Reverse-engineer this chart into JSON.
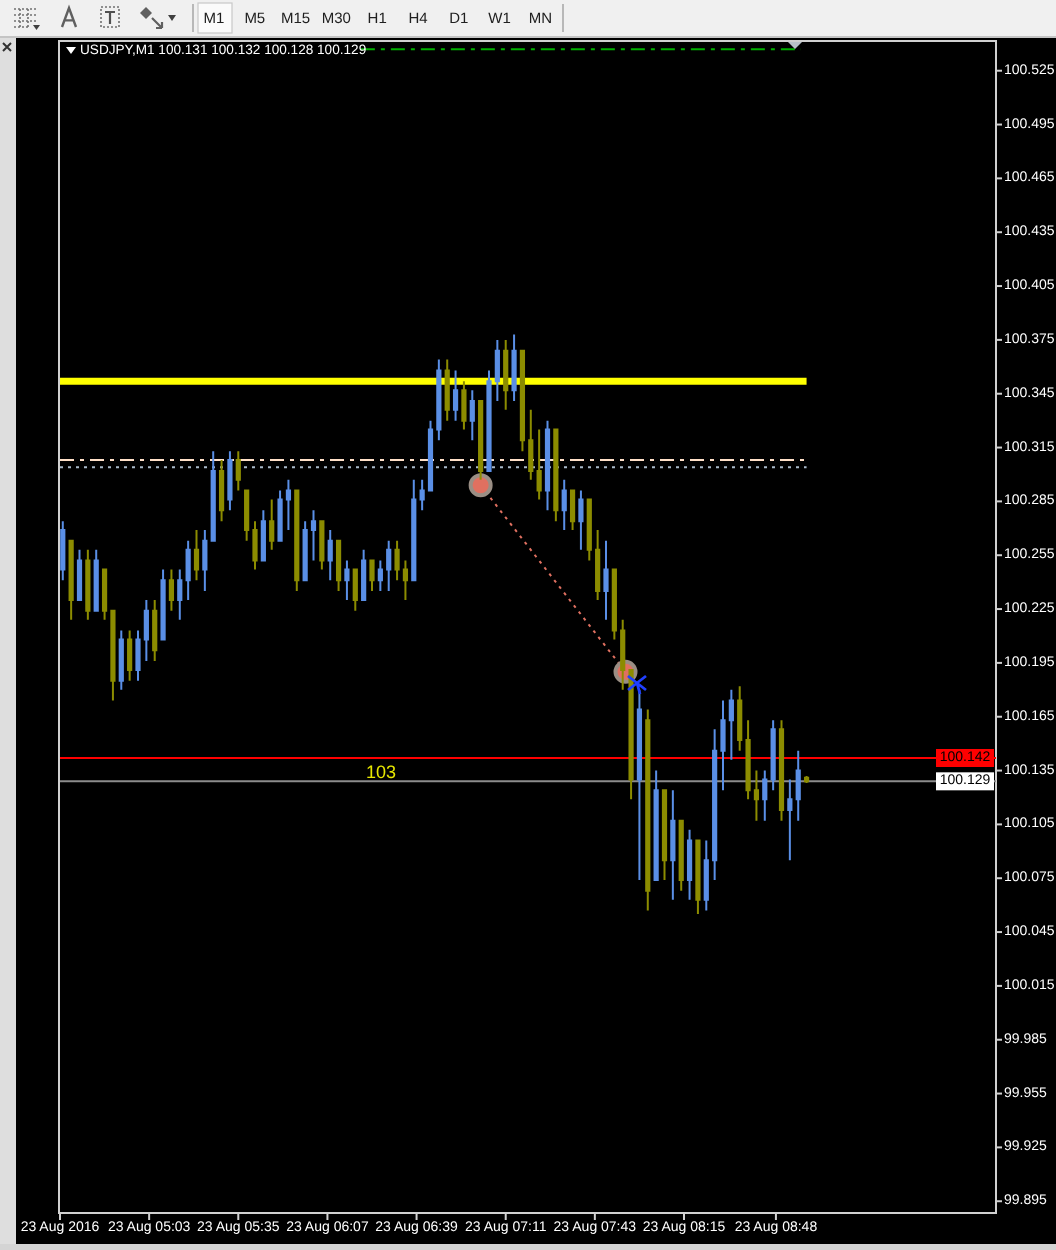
{
  "chart_data": {
    "type": "candlestick",
    "title": "USDJPY,M1 100.131 100.132 100.128 100.129",
    "x": [
      "2016-08-23T04:32",
      "2016-08-23T04:35",
      "2016-08-23T04:38",
      "2016-08-23T04:41",
      "2016-08-23T04:44",
      "2016-08-23T04:47",
      "2016-08-23T04:50",
      "2016-08-23T04:53",
      "2016-08-23T04:56",
      "2016-08-23T04:59",
      "2016-08-23T05:02",
      "2016-08-23T05:05",
      "2016-08-23T05:08",
      "2016-08-23T05:11",
      "2016-08-23T05:14",
      "2016-08-23T05:17",
      "2016-08-23T05:20",
      "2016-08-23T05:23",
      "2016-08-23T05:26",
      "2016-08-23T05:29",
      "2016-08-23T05:32",
      "2016-08-23T05:35",
      "2016-08-23T05:38",
      "2016-08-23T05:41",
      "2016-08-23T05:44",
      "2016-08-23T05:47",
      "2016-08-23T05:50",
      "2016-08-23T05:53",
      "2016-08-23T05:56",
      "2016-08-23T05:59",
      "2016-08-23T06:02",
      "2016-08-23T06:05",
      "2016-08-23T06:08",
      "2016-08-23T06:11",
      "2016-08-23T06:14",
      "2016-08-23T06:17",
      "2016-08-23T06:20",
      "2016-08-23T06:23",
      "2016-08-23T06:26",
      "2016-08-23T06:29",
      "2016-08-23T06:32",
      "2016-08-23T06:35",
      "2016-08-23T06:38",
      "2016-08-23T06:41",
      "2016-08-23T06:44",
      "2016-08-23T06:47",
      "2016-08-23T06:50",
      "2016-08-23T06:53",
      "2016-08-23T06:56",
      "2016-08-23T06:59",
      "2016-08-23T07:02",
      "2016-08-23T07:05",
      "2016-08-23T07:08",
      "2016-08-23T07:11",
      "2016-08-23T07:14",
      "2016-08-23T07:17",
      "2016-08-23T07:20",
      "2016-08-23T07:23",
      "2016-08-23T07:26",
      "2016-08-23T07:29",
      "2016-08-23T07:32",
      "2016-08-23T07:35",
      "2016-08-23T07:38",
      "2016-08-23T07:41",
      "2016-08-23T07:44",
      "2016-08-23T07:47",
      "2016-08-23T07:50",
      "2016-08-23T07:53",
      "2016-08-23T07:56",
      "2016-08-23T07:59",
      "2016-08-23T08:02",
      "2016-08-23T08:05",
      "2016-08-23T08:08",
      "2016-08-23T08:11",
      "2016-08-23T08:14",
      "2016-08-23T08:17",
      "2016-08-23T08:20",
      "2016-08-23T08:23",
      "2016-08-23T08:26",
      "2016-08-23T08:29",
      "2016-08-23T08:32",
      "2016-08-23T08:35",
      "2016-08-23T08:38",
      "2016-08-23T08:41",
      "2016-08-23T08:44",
      "2016-08-23T08:47",
      "2016-08-23T08:50",
      "2016-08-23T08:53",
      "2016-08-23T08:56",
      "2016-08-23T08:59"
    ],
    "ohlc": [
      [
        100.247,
        100.274,
        100.241,
        100.269
      ],
      [
        100.263,
        100.263,
        100.219,
        100.23
      ],
      [
        100.23,
        100.258,
        100.23,
        100.252
      ],
      [
        100.252,
        100.258,
        100.219,
        100.224
      ],
      [
        100.224,
        100.258,
        100.224,
        100.252
      ],
      [
        100.247,
        100.247,
        100.219,
        100.224
      ],
      [
        100.224,
        100.224,
        100.174,
        100.185
      ],
      [
        100.185,
        100.213,
        100.18,
        100.208
      ],
      [
        100.208,
        100.213,
        100.185,
        100.191
      ],
      [
        100.191,
        100.213,
        100.185,
        100.208
      ],
      [
        100.208,
        100.23,
        100.196,
        100.224
      ],
      [
        100.224,
        100.23,
        100.196,
        100.202
      ],
      [
        100.208,
        100.247,
        100.208,
        100.241
      ],
      [
        100.241,
        100.247,
        100.224,
        100.23
      ],
      [
        100.23,
        100.247,
        100.219,
        100.241
      ],
      [
        100.241,
        100.263,
        100.23,
        100.258
      ],
      [
        100.258,
        100.269,
        100.241,
        100.247
      ],
      [
        100.247,
        100.269,
        100.235,
        100.263
      ],
      [
        100.263,
        100.313,
        100.263,
        100.302
      ],
      [
        100.302,
        100.308,
        100.274,
        100.28
      ],
      [
        100.286,
        100.313,
        100.28,
        100.308
      ],
      [
        100.308,
        100.313,
        100.291,
        100.297
      ],
      [
        100.291,
        100.291,
        100.263,
        100.269
      ],
      [
        100.269,
        100.274,
        100.247,
        100.252
      ],
      [
        100.252,
        100.28,
        100.252,
        100.274
      ],
      [
        100.274,
        100.286,
        100.258,
        100.263
      ],
      [
        100.263,
        100.291,
        100.263,
        100.286
      ],
      [
        100.286,
        100.297,
        100.269,
        100.291
      ],
      [
        100.291,
        100.291,
        100.235,
        100.241
      ],
      [
        100.241,
        100.274,
        100.241,
        100.269
      ],
      [
        100.269,
        100.28,
        100.252,
        100.274
      ],
      [
        100.274,
        100.274,
        100.247,
        100.252
      ],
      [
        100.252,
        100.269,
        100.241,
        100.263
      ],
      [
        100.263,
        100.263,
        100.235,
        100.241
      ],
      [
        100.241,
        100.252,
        100.23,
        100.247
      ],
      [
        100.247,
        100.247,
        100.224,
        100.23
      ],
      [
        100.23,
        100.258,
        100.23,
        100.252
      ],
      [
        100.252,
        100.252,
        100.235,
        100.241
      ],
      [
        100.241,
        100.252,
        100.235,
        100.247
      ],
      [
        100.247,
        100.263,
        100.235,
        100.258
      ],
      [
        100.258,
        100.263,
        100.241,
        100.247
      ],
      [
        100.247,
        100.252,
        100.23,
        100.241
      ],
      [
        100.241,
        100.297,
        100.241,
        100.286
      ],
      [
        100.286,
        100.297,
        100.28,
        100.291
      ],
      [
        100.291,
        100.33,
        100.291,
        100.325
      ],
      [
        100.325,
        100.364,
        100.319,
        100.358
      ],
      [
        100.358,
        100.364,
        100.33,
        100.336
      ],
      [
        100.336,
        100.358,
        100.33,
        100.347
      ],
      [
        100.347,
        100.352,
        100.325,
        100.33
      ],
      [
        100.33,
        100.347,
        100.319,
        100.341
      ],
      [
        100.341,
        100.341,
        100.297,
        100.302
      ],
      [
        100.302,
        100.358,
        100.302,
        100.352
      ],
      [
        100.352,
        100.375,
        100.341,
        100.369
      ],
      [
        100.369,
        100.375,
        100.336,
        100.347
      ],
      [
        100.347,
        100.378,
        100.341,
        100.369
      ],
      [
        100.369,
        100.369,
        100.313,
        100.319
      ],
      [
        100.319,
        100.336,
        100.297,
        100.302
      ],
      [
        100.302,
        100.325,
        100.286,
        100.291
      ],
      [
        100.291,
        100.33,
        100.28,
        100.325
      ],
      [
        100.325,
        100.325,
        100.274,
        100.28
      ],
      [
        100.28,
        100.297,
        100.269,
        100.291
      ],
      [
        100.291,
        100.291,
        100.269,
        100.274
      ],
      [
        100.274,
        100.291,
        100.258,
        100.286
      ],
      [
        100.286,
        100.286,
        100.252,
        100.258
      ],
      [
        100.258,
        100.269,
        100.23,
        100.235
      ],
      [
        100.235,
        100.263,
        100.219,
        100.247
      ],
      [
        100.247,
        100.247,
        100.208,
        100.213
      ],
      [
        100.213,
        100.219,
        100.18,
        100.191
      ],
      [
        100.191,
        100.191,
        100.119,
        100.13
      ],
      [
        100.13,
        100.18,
        100.074,
        100.169
      ],
      [
        100.163,
        100.169,
        100.057,
        100.068
      ],
      [
        100.074,
        100.135,
        100.074,
        100.124
      ],
      [
        100.124,
        100.124,
        100.074,
        100.085
      ],
      [
        100.085,
        100.124,
        100.063,
        100.107
      ],
      [
        100.107,
        100.107,
        100.068,
        100.074
      ],
      [
        100.074,
        100.102,
        100.063,
        100.096
      ],
      [
        100.096,
        100.096,
        100.055,
        100.063
      ],
      [
        100.063,
        100.096,
        100.057,
        100.085
      ],
      [
        100.085,
        100.158,
        100.074,
        100.146
      ],
      [
        100.146,
        100.174,
        100.124,
        100.163
      ],
      [
        100.163,
        100.18,
        100.141,
        100.174
      ],
      [
        100.174,
        100.182,
        100.146,
        100.152
      ],
      [
        100.152,
        100.163,
        100.119,
        100.124
      ],
      [
        100.124,
        100.135,
        100.107,
        100.119
      ],
      [
        100.119,
        100.135,
        100.107,
        100.13
      ],
      [
        100.13,
        100.163,
        100.124,
        100.158
      ],
      [
        100.158,
        100.163,
        100.107,
        100.113
      ],
      [
        100.113,
        100.13,
        100.085,
        100.119
      ],
      [
        100.119,
        100.146,
        100.107,
        100.135
      ],
      [
        100.131,
        100.132,
        100.128,
        100.129
      ]
    ],
    "colors": [
      "#5a8fe6",
      "#8c8c00",
      "#5a8fe6",
      "#8c8c00",
      "#5a8fe6",
      "#8c8c00",
      "#8c8c00",
      "#5a8fe6",
      "#8c8c00",
      "#5a8fe6",
      "#5a8fe6",
      "#8c8c00",
      "#5a8fe6",
      "#8c8c00",
      "#5a8fe6",
      "#5a8fe6",
      "#8c8c00",
      "#5a8fe6",
      "#5a8fe6",
      "#8c8c00",
      "#5a8fe6",
      "#8c8c00",
      "#8c8c00",
      "#8c8c00",
      "#5a8fe6",
      "#8c8c00",
      "#5a8fe6",
      "#5a8fe6",
      "#8c8c00",
      "#5a8fe6",
      "#5a8fe6",
      "#8c8c00",
      "#5a8fe6",
      "#8c8c00",
      "#5a8fe6",
      "#8c8c00",
      "#5a8fe6",
      "#8c8c00",
      "#5a8fe6",
      "#5a8fe6",
      "#8c8c00",
      "#8c8c00",
      "#5a8fe6",
      "#5a8fe6",
      "#5a8fe6",
      "#5a8fe6",
      "#8c8c00",
      "#5a8fe6",
      "#8c8c00",
      "#5a8fe6",
      "#8c8c00",
      "#5a8fe6",
      "#5a8fe6",
      "#8c8c00",
      "#5a8fe6",
      "#8c8c00",
      "#8c8c00",
      "#8c8c00",
      "#5a8fe6",
      "#8c8c00",
      "#5a8fe6",
      "#8c8c00",
      "#5a8fe6",
      "#8c8c00",
      "#8c8c00",
      "#5a8fe6",
      "#8c8c00",
      "#8c8c00",
      "#8c8c00",
      "#5a8fe6",
      "#8c8c00",
      "#5a8fe6",
      "#8c8c00",
      "#5a8fe6",
      "#8c8c00",
      "#5a8fe6",
      "#8c8c00",
      "#5a8fe6",
      "#5a8fe6",
      "#5a8fe6",
      "#5a8fe6",
      "#8c8c00",
      "#8c8c00",
      "#8c8c00",
      "#5a8fe6",
      "#5a8fe6",
      "#8c8c00",
      "#5a8fe6",
      "#5a8fe6",
      "#8c8c00"
    ],
    "series": [
      {
        "type": "line",
        "x": [
          "2016-08-23T04:31",
          "2016-08-23T08:59"
        ],
        "values": [
          100.352,
          100.352
        ],
        "color": "#ffff00"
      },
      {
        "type": "line",
        "x": [
          "2016-08-23T04:31",
          "2016-08-23T08:59"
        ],
        "values": [
          100.308,
          100.308
        ],
        "color": "#ffe0c8",
        "line_style": "dashed"
      },
      {
        "type": "line",
        "x": [
          "2016-08-23T04:31",
          "2016-08-23T08:59"
        ],
        "values": [
          100.304,
          100.304
        ],
        "color": "#a8b8c8",
        "line_style": "dotted"
      },
      {
        "type": "line",
        "x": [
          "2016-08-23T06:19",
          "2016-08-23T08:57"
        ],
        "values": [
          100.537,
          100.537
        ],
        "color": "#00b000",
        "line_style": "dashed"
      },
      {
        "type": "line",
        "x": [
          "2016-08-23T07:02",
          "2016-08-23T07:54"
        ],
        "values": [
          100.294,
          100.19
        ],
        "color": "#e07060",
        "line_style": "dotted",
        "marker": "circle"
      }
    ],
    "ref_lines": [
      {
        "axis": "y",
        "value": 100.142,
        "label": "100.142",
        "color": "#ff0000"
      },
      {
        "axis": "y",
        "value": 100.129,
        "label": "100.129",
        "color": "#8c8c8c"
      }
    ],
    "annotations": [
      "103",
      "M1",
      "M5",
      "M15",
      "M30",
      "H1",
      "H4",
      "D1",
      "W1",
      "MN"
    ],
    "xlim": [
      "2016-08-23T04:31",
      "2016-08-23T10:07"
    ],
    "xticks": [
      {
        "value": "2016-08-23T04:31",
        "label": "23 Aug 2016"
      },
      {
        "value": "2016-08-23T05:03",
        "label": "23 Aug 05:03"
      },
      {
        "value": "2016-08-23T05:35",
        "label": "23 Aug 05:35"
      },
      {
        "value": "2016-08-23T06:07",
        "label": "23 Aug 06:07"
      },
      {
        "value": "2016-08-23T06:39",
        "label": "23 Aug 06:39"
      },
      {
        "value": "2016-08-23T07:11",
        "label": "23 Aug 07:11"
      },
      {
        "value": "2016-08-23T07:43",
        "label": "23 Aug 07:43"
      },
      {
        "value": "2016-08-23T08:15",
        "label": "23 Aug 08:15"
      },
      {
        "value": "2016-08-23T08:48",
        "label": "23 Aug 08:48"
      }
    ],
    "ylim": [
      99.889,
      100.541
    ],
    "yticks": [
      99.895,
      99.925,
      99.955,
      99.985,
      100.015,
      100.045,
      100.075,
      100.105,
      100.135,
      100.165,
      100.195,
      100.225,
      100.255,
      100.285,
      100.315,
      100.345,
      100.375,
      100.405,
      100.435,
      100.465,
      100.495,
      100.525
    ]
  }
}
